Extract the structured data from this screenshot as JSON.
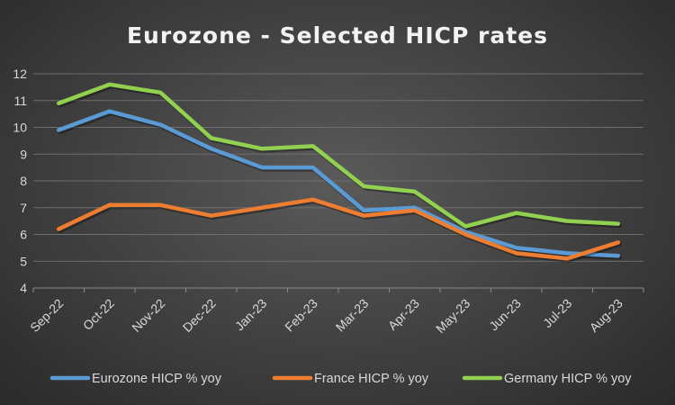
{
  "chart_data": {
    "type": "line",
    "title": "Eurozone - Selected HICP rates",
    "xlabel": "",
    "ylabel": "",
    "categories": [
      "Sep-22",
      "Oct-22",
      "Nov-22",
      "Dec-22",
      "Jan-23",
      "Feb-23",
      "Mar-23",
      "Apr-23",
      "May-23",
      "Jun-23",
      "Jul-23",
      "Aug-23"
    ],
    "ylim": [
      4,
      12
    ],
    "yticks": [
      4,
      5,
      6,
      7,
      8,
      9,
      10,
      11,
      12
    ],
    "grid": true,
    "legend_position": "bottom",
    "series": [
      {
        "name": "Eurozone HICP % yoy",
        "color": "#5b9bd5",
        "values": [
          9.9,
          10.6,
          10.1,
          9.2,
          8.5,
          8.5,
          6.9,
          7.0,
          6.1,
          5.5,
          5.3,
          5.2
        ]
      },
      {
        "name": "France HICP % yoy",
        "color": "#ed7d31",
        "values": [
          6.2,
          7.1,
          7.1,
          6.7,
          7.0,
          7.3,
          6.7,
          6.9,
          6.0,
          5.3,
          5.1,
          5.7
        ]
      },
      {
        "name": "Germany HICP % yoy",
        "color": "#92d050",
        "values": [
          10.9,
          11.6,
          11.3,
          9.6,
          9.2,
          9.3,
          7.8,
          7.6,
          6.3,
          6.8,
          6.5,
          6.4
        ]
      }
    ]
  }
}
